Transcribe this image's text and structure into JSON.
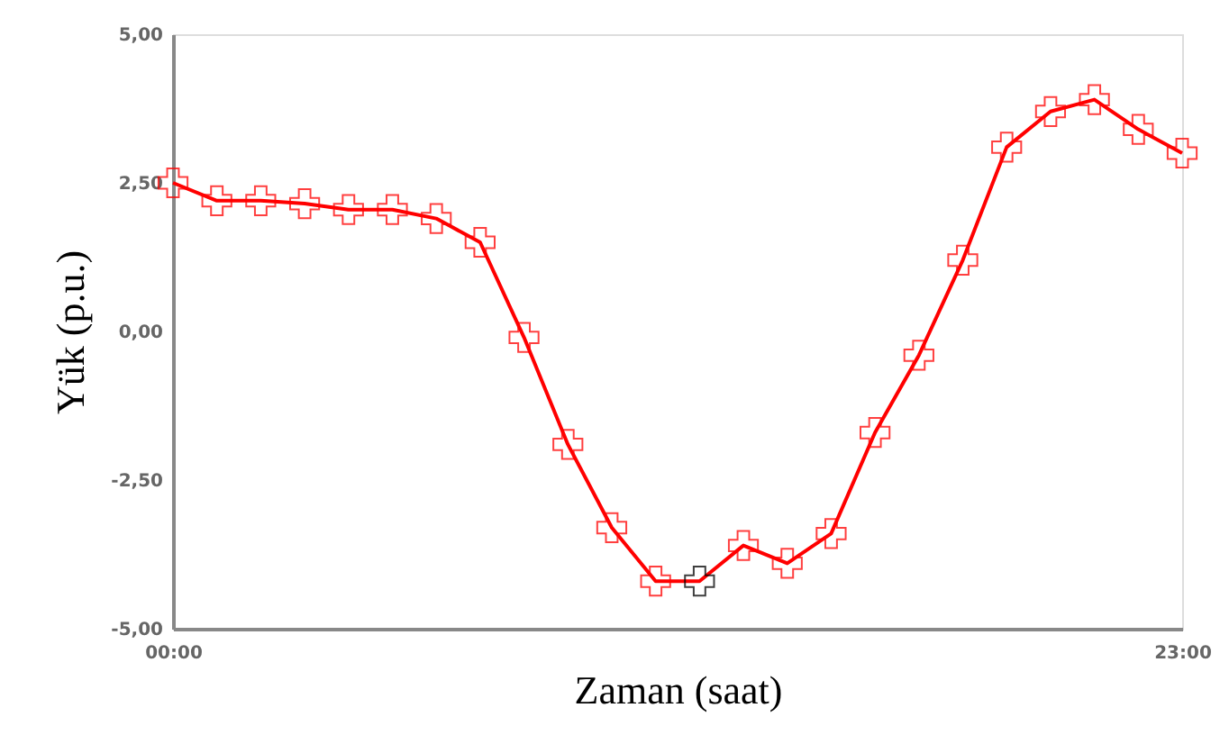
{
  "chart_data": {
    "type": "line",
    "xlabel": "Zaman (saat)",
    "ylabel": "Yük (p.u.)",
    "x": [
      0,
      1,
      2,
      3,
      4,
      5,
      6,
      7,
      8,
      9,
      10,
      11,
      12,
      13,
      14,
      15,
      16,
      17,
      18,
      19,
      20,
      21,
      22,
      23
    ],
    "series": [
      {
        "color": "#ff0000",
        "colors": [
          "#ff0000",
          "#ff0000",
          "#ff0000",
          "#ff0000",
          "#ff0000",
          "#ff0000",
          "#ff0000",
          "#ff0000",
          "#ff0000",
          "#ff0000",
          "#ff0000",
          "#ff0000",
          "#000000",
          "#ff0000",
          "#ff0000",
          "#ff0000",
          "#ff0000",
          "#ff0000",
          "#ff0000",
          "#ff0000",
          "#ff0000",
          "#ff0000",
          "#ff0000",
          "#ff0000"
        ],
        "values": [
          2.5,
          2.2,
          2.2,
          2.15,
          2.05,
          2.05,
          1.9,
          1.5,
          -0.1,
          -1.9,
          -3.3,
          -4.2,
          -4.2,
          -3.6,
          -3.9,
          -3.4,
          -1.7,
          -0.4,
          1.2,
          3.1,
          3.7,
          3.9,
          3.4,
          3.0
        ]
      }
    ],
    "xlim": [
      0,
      23
    ],
    "xticks": [
      {
        "value": 0,
        "label": "00:00"
      },
      {
        "value": 23,
        "label": "23:00"
      }
    ],
    "ylim": [
      -5,
      5
    ],
    "yticks": [
      {
        "value": -5,
        "label": "-5,00"
      },
      {
        "value": -2.5,
        "label": "-2,50"
      },
      {
        "value": 0,
        "label": "0,00"
      },
      {
        "value": 2.5,
        "label": "2,50"
      },
      {
        "value": 5,
        "label": "5,00"
      }
    ],
    "grid": false,
    "marker": "cross",
    "line_style": "solid"
  }
}
